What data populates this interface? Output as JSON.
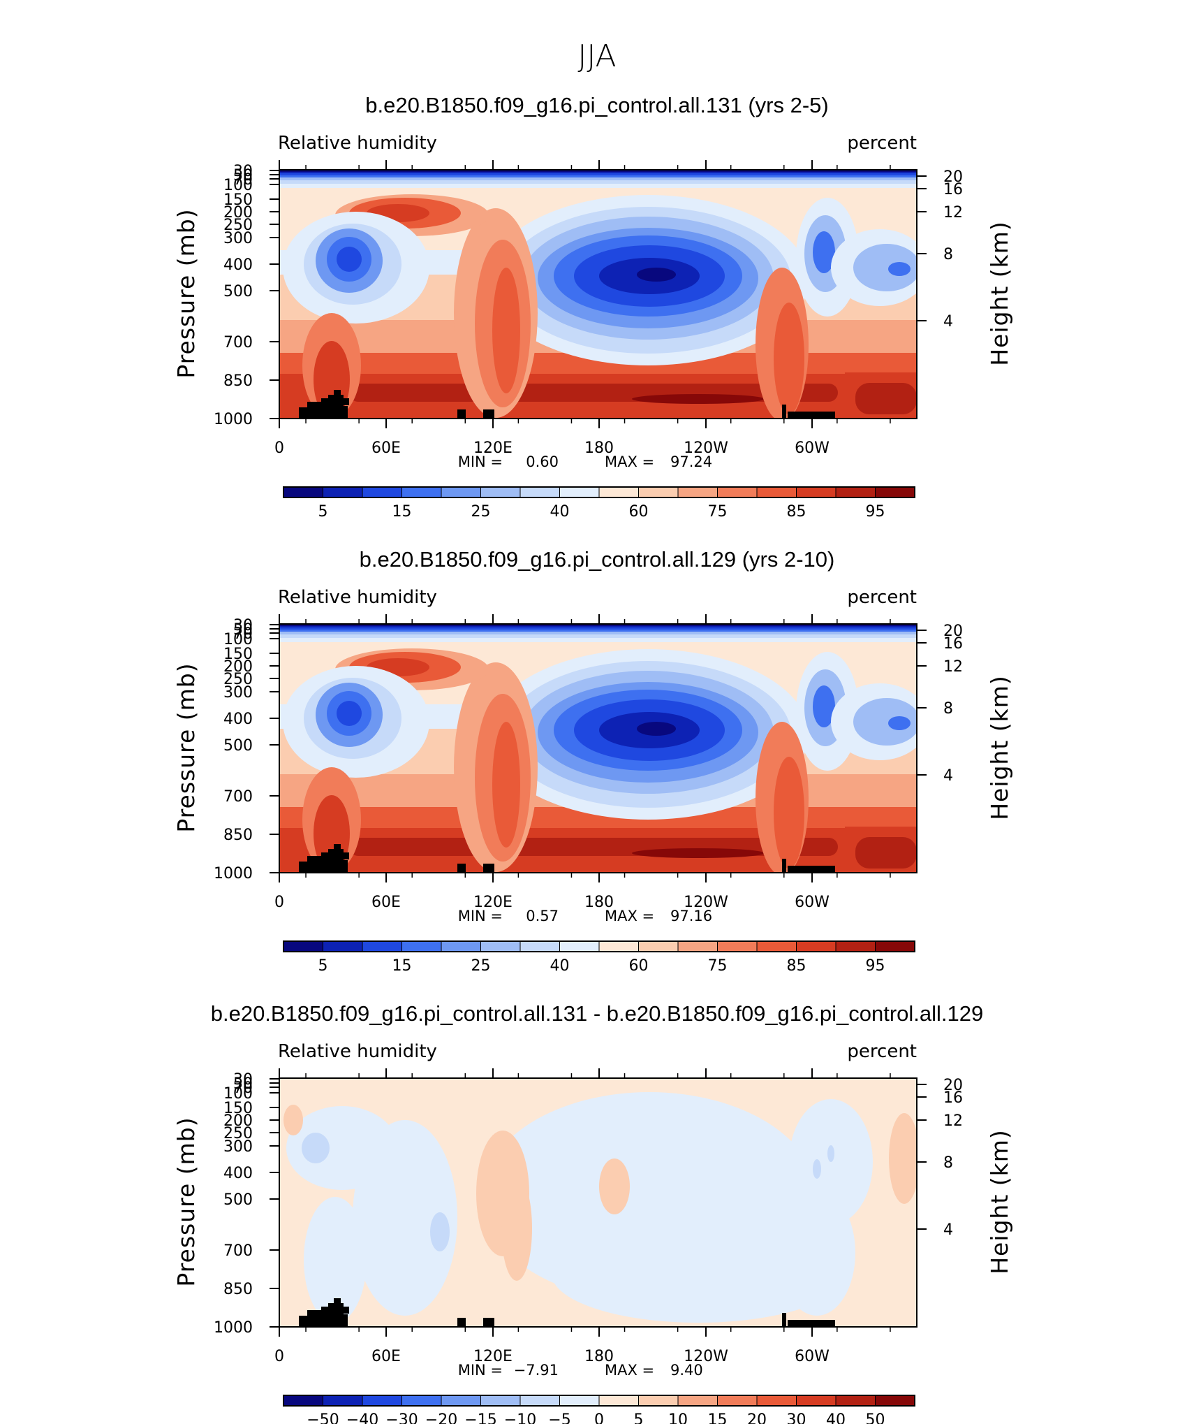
{
  "figure_title": "JJA",
  "chart_data": [
    {
      "type": "heatmap",
      "title": "b.e20.B1850.f09_g16.pi_control.all.131 (yrs 2-5)",
      "left_label": "Relative humidity",
      "right_label": "percent",
      "ylabel": "Pressure (mb)",
      "y2label": "Height (km)",
      "x_ticks": [
        "0",
        "60E",
        "120E",
        "180",
        "120W",
        "60W"
      ],
      "y_ticks": [
        "30",
        "50",
        "70",
        "100",
        "150",
        "200",
        "250",
        "300",
        "400",
        "500",
        "700",
        "850",
        "1000"
      ],
      "y2_ticks": [
        "20",
        "16",
        "12",
        "8",
        "4"
      ],
      "min_label": "MIN =",
      "min_value": "0.60",
      "max_label": "MAX =",
      "max_value": "97.24",
      "colorbar_labels": [
        "5",
        "15",
        "25",
        "40",
        "60",
        "75",
        "85",
        "95"
      ],
      "palette": "full"
    },
    {
      "type": "heatmap",
      "title": "b.e20.B1850.f09_g16.pi_control.all.129 (yrs 2-10)",
      "left_label": "Relative humidity",
      "right_label": "percent",
      "ylabel": "Pressure (mb)",
      "y2label": "Height (km)",
      "x_ticks": [
        "0",
        "60E",
        "120E",
        "180",
        "120W",
        "60W"
      ],
      "y_ticks": [
        "30",
        "50",
        "70",
        "100",
        "150",
        "200",
        "250",
        "300",
        "400",
        "500",
        "700",
        "850",
        "1000"
      ],
      "y2_ticks": [
        "20",
        "16",
        "12",
        "8",
        "4"
      ],
      "min_label": "MIN =",
      "min_value": "0.57",
      "max_label": "MAX =",
      "max_value": "97.16",
      "colorbar_labels": [
        "5",
        "15",
        "25",
        "40",
        "60",
        "75",
        "85",
        "95"
      ],
      "palette": "full"
    },
    {
      "type": "heatmap",
      "title": "b.e20.B1850.f09_g16.pi_control.all.131 - b.e20.B1850.f09_g16.pi_control.all.129",
      "left_label": "Relative humidity",
      "right_label": "percent",
      "ylabel": "Pressure (mb)",
      "y2label": "Height (km)",
      "x_ticks": [
        "0",
        "60E",
        "120E",
        "180",
        "120W",
        "60W"
      ],
      "y_ticks": [
        "30",
        "50",
        "70",
        "100",
        "150",
        "200",
        "250",
        "300",
        "400",
        "500",
        "700",
        "850",
        "1000"
      ],
      "y2_ticks": [
        "20",
        "16",
        "12",
        "8",
        "4"
      ],
      "min_label": "MIN =",
      "min_value": "−7.91",
      "max_label": "MAX =",
      "max_value": "9.40",
      "colorbar_labels": [
        "−50",
        "−40",
        "−30",
        "−20",
        "−15",
        "−10",
        "−5",
        "0",
        "5",
        "10",
        "15",
        "20",
        "30",
        "40",
        "50"
      ],
      "palette": "diff"
    }
  ],
  "colors": {
    "colorbar": [
      "#08087e",
      "#0d22b4",
      "#1f48e0",
      "#3e70f0",
      "#6e98f2",
      "#9fbdf5",
      "#c6daf9",
      "#e2eefc",
      "#fde8d6",
      "#fbcdb0",
      "#f6a583",
      "#f17c59",
      "#e95a38",
      "#d63c22",
      "#b22113",
      "#860808"
    ],
    "topo": "#000000"
  }
}
